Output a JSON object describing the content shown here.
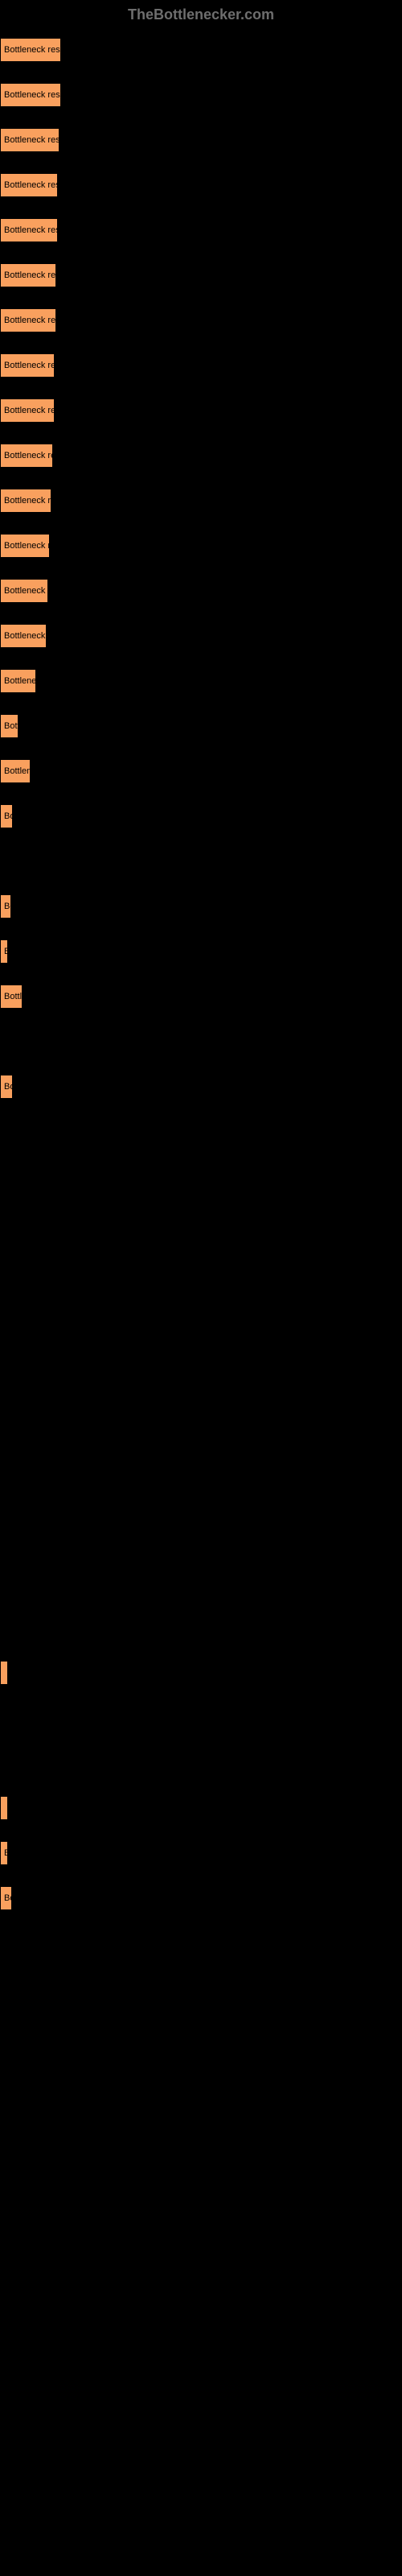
{
  "header": {
    "site_name": "TheBottlenecker.com"
  },
  "chart": {
    "type": "bar",
    "orientation": "horizontal",
    "background_color": "#000000",
    "bar_default_color": "#f9a05e",
    "bar_border_color": "#000000",
    "font_size": 11,
    "text_color": "#000000",
    "bars": [
      {
        "label": "Bottleneck result",
        "width": 76,
        "color": "#f9a05e"
      },
      {
        "label": "Bottleneck result",
        "width": 76,
        "color": "#f9a05e"
      },
      {
        "label": "Bottleneck result",
        "width": 74,
        "color": "#f9a05e"
      },
      {
        "label": "Bottleneck result",
        "width": 72,
        "color": "#f9a05e"
      },
      {
        "label": "Bottleneck result",
        "width": 72,
        "color": "#f9a05e"
      },
      {
        "label": "Bottleneck result",
        "width": 70,
        "color": "#f9a05e"
      },
      {
        "label": "Bottleneck result",
        "width": 70,
        "color": "#f9a05e"
      },
      {
        "label": "Bottleneck result",
        "width": 68,
        "color": "#f9a05e"
      },
      {
        "label": "Bottleneck result",
        "width": 68,
        "color": "#f9a05e"
      },
      {
        "label": "Bottleneck result",
        "width": 66,
        "color": "#f9a05e"
      },
      {
        "label": "Bottleneck result",
        "width": 64,
        "color": "#f9a05e"
      },
      {
        "label": "Bottleneck result",
        "width": 62,
        "color": "#f9a05e"
      },
      {
        "label": "Bottleneck result",
        "width": 60,
        "color": "#f9a05e"
      },
      {
        "label": "Bottleneck result",
        "width": 58,
        "color": "#f9a05e"
      },
      {
        "label": "Bottleneck result",
        "width": 45,
        "color": "#f9a05e"
      },
      {
        "label": "Bottleneck result",
        "width": 23,
        "color": "#f9a05e"
      },
      {
        "label": "Bottleneck result",
        "width": 38,
        "color": "#f9a05e"
      },
      {
        "label": "Bottleneck result",
        "width": 16,
        "color": "#f9a05e"
      },
      {
        "label": "",
        "width": 0,
        "color": "#f9a05e"
      },
      {
        "label": "Bottleneck result",
        "width": 14,
        "color": "#f9a05e"
      },
      {
        "label": "Bottleneck result",
        "width": 9,
        "color": "#f9a05e"
      },
      {
        "label": "Bottleneck result",
        "width": 28,
        "color": "#f9a05e"
      },
      {
        "label": "",
        "width": 0,
        "color": "#f9a05e"
      },
      {
        "label": "Bottleneck result",
        "width": 16,
        "color": "#f9a05e"
      },
      {
        "label": "",
        "width": 0,
        "color": "#f9a05e"
      },
      {
        "label": "",
        "width": 0,
        "color": "#f9a05e"
      },
      {
        "label": "",
        "width": 0,
        "color": "#f9a05e"
      },
      {
        "label": "",
        "width": 0,
        "color": "#f9a05e"
      },
      {
        "label": "",
        "width": 0,
        "color": "#f9a05e"
      },
      {
        "label": "",
        "width": 0,
        "color": "#f9a05e"
      },
      {
        "label": "",
        "width": 0,
        "color": "#f9a05e"
      },
      {
        "label": "",
        "width": 0,
        "color": "#f9a05e"
      },
      {
        "label": "",
        "width": 0,
        "color": "#f9a05e"
      },
      {
        "label": "",
        "width": 0,
        "color": "#f9a05e"
      },
      {
        "label": "",
        "width": 0,
        "color": "#f9a05e"
      },
      {
        "label": "",
        "width": 0,
        "color": "#f9a05e"
      },
      {
        "label": "",
        "width": 2,
        "color": "#f9a05e"
      },
      {
        "label": "",
        "width": 0,
        "color": "#f9a05e"
      },
      {
        "label": "",
        "width": 0,
        "color": "#f9a05e"
      },
      {
        "label": "",
        "width": 5,
        "color": "#f9a05e"
      },
      {
        "label": "Bottleneck result",
        "width": 10,
        "color": "#f9a05e"
      },
      {
        "label": "Bottleneck result",
        "width": 15,
        "color": "#f9a05e"
      }
    ]
  }
}
